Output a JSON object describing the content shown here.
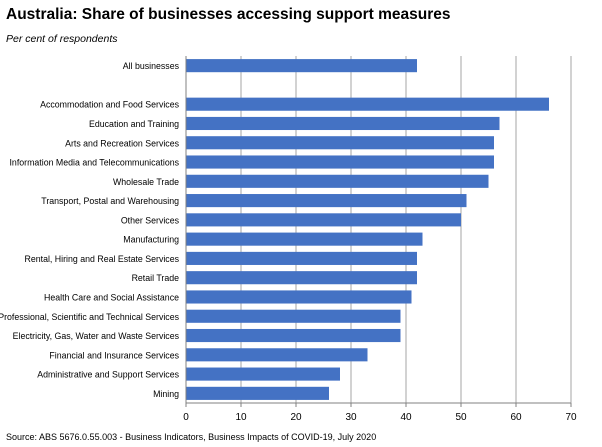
{
  "title": "Australia: Share of businesses accessing support measures",
  "subtitle": "Per cent of respondents",
  "source": "Source: ABS 5676.0.55.003 - Business Indicators, Business Impacts of COVID-19, July 2020",
  "chart_data": {
    "type": "bar",
    "orientation": "horizontal",
    "title": "Australia: Share of businesses accessing support measures",
    "subtitle": "Per cent of respondents",
    "categories": [
      "All businesses",
      "",
      "Accommodation and Food Services",
      "Education and Training",
      "Arts and Recreation Services",
      "Information Media and Telecommunications",
      "Wholesale Trade",
      "Transport, Postal and Warehousing",
      "Other Services",
      "Manufacturing",
      "Rental, Hiring and Real Estate Services",
      "Retail Trade",
      "Health Care and Social Assistance",
      "Professional, Scientific and Technical Services",
      "Electricity, Gas, Water and Waste Services",
      "Financial and Insurance Services",
      "Administrative and Support Services",
      "Mining"
    ],
    "values": [
      42,
      null,
      66,
      57,
      56,
      56,
      55,
      51,
      50,
      43,
      42,
      42,
      41,
      39,
      39,
      33,
      28,
      26
    ],
    "xlim": [
      0,
      70
    ],
    "xticks": [
      0,
      10,
      20,
      30,
      40,
      50,
      60,
      70
    ],
    "grid": "vertical",
    "legend": "none",
    "bar_color": "#4472C4"
  }
}
